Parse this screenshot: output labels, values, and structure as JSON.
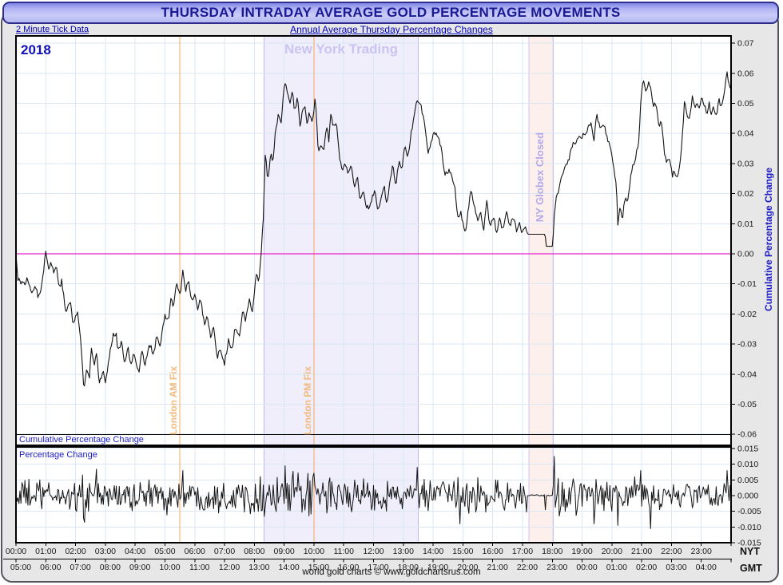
{
  "header": {
    "title": "THURSDAY INTRADAY AVERAGE GOLD PERCENTAGE MOVEMENTS",
    "left_subtitle": "2 Minute Tick Data",
    "center_subtitle": "Annual Average Thursday Percentage Changes"
  },
  "labels": {
    "year": "2018",
    "main_panel": "Cumulative Percentage Change",
    "sub_panel": "Percentage Change",
    "right_axis_title": "Cumulative Percentage Change",
    "nyt": "NYT",
    "gmt": "GMT"
  },
  "footer": {
    "credit": "world gold charts © www.goldchartsrus.com"
  },
  "axis": {
    "nyt_times": [
      "00:00",
      "01:00",
      "02:00",
      "03:00",
      "04:00",
      "05:00",
      "06:00",
      "07:00",
      "08:00",
      "09:00",
      "10:00",
      "11:00",
      "12:00",
      "13:00",
      "14:00",
      "15:00",
      "16:00",
      "17:00",
      "18:00",
      "19:00",
      "20:00",
      "21:00",
      "22:00",
      "23:00"
    ],
    "gmt_times": [
      "05:00",
      "06:00",
      "07:00",
      "08:00",
      "09:00",
      "10:00",
      "11:00",
      "12:00",
      "13:00",
      "14:00",
      "15:00",
      "16:00",
      "17:00",
      "18:00",
      "19:00",
      "20:00",
      "21:00",
      "22:00",
      "23:00",
      "00:00",
      "01:00",
      "02:00",
      "03:00",
      "04:00"
    ]
  },
  "annotations": {
    "ny_trading": {
      "label": "New York Trading",
      "t_start": 8.33,
      "t_end": 13.5
    },
    "globex": {
      "label": "NY Globex Closed",
      "t_start": 17.22,
      "t_end": 18.03
    },
    "am_fix": {
      "label": "London AM Fix",
      "t": 5.5
    },
    "pm_fix": {
      "label": "London PM Fix",
      "t": 10.0
    }
  },
  "colors": {
    "title_navy": "#191994",
    "subtitle_blue": "#0000bb",
    "grid": "#d9e8f4",
    "series": "#141414",
    "zero_line": "#ea1fd0",
    "fix_line": "#f0a862",
    "fix_label": "#f4b97e",
    "ny_band_fill": "#f0eefb",
    "ny_band_border": "#bdb5ec",
    "ny_band_label": "#c9c4f3",
    "globex_fill": "#fdf0ec",
    "globex_border": "#ccc5f1",
    "globex_label": "#b2a9ea",
    "axis_text": "#1a1a1a",
    "blue_label": "#1c1ccc",
    "plot_bg": "#ffffff"
  },
  "chart_data": {
    "type": "line",
    "title": "Thursday intraday average gold percentage movements (2018, 2-minute ticks)",
    "x_unit": "hours NYT",
    "x_range": [
      0,
      24
    ],
    "tick_minutes": 2,
    "events": {
      "london_am_fix_t": 5.5,
      "london_pm_fix_t": 10.0,
      "ny_trading": [
        8.33,
        13.5
      ],
      "globex_closed": [
        17.22,
        18.03
      ]
    },
    "panels": [
      {
        "name": "Cumulative Percentage Change",
        "y_range": [
          -0.06,
          0.07
        ],
        "y_step": 0.01,
        "noise_amp": 0.0009,
        "flat_ranges": [
          [
            17.16,
            17.77
          ],
          [
            17.79,
            18.03
          ]
        ],
        "waypoints": [
          [
            0,
            0
          ],
          [
            0.06,
            -0.008
          ],
          [
            0.24,
            -0.0103
          ],
          [
            0.38,
            -0.0085
          ],
          [
            0.51,
            -0.0125
          ],
          [
            0.64,
            -0.0106
          ],
          [
            0.73,
            -0.0138
          ],
          [
            0.82,
            -0.0125
          ],
          [
            0.91,
            -0.0064
          ],
          [
            1,
            0.0008
          ],
          [
            1.09,
            -0.005
          ],
          [
            1.18,
            -0.0027
          ],
          [
            1.27,
            -0.0064
          ],
          [
            1.36,
            -0.004
          ],
          [
            1.45,
            -0.0111
          ],
          [
            1.54,
            -0.009
          ],
          [
            1.67,
            -0.0199
          ],
          [
            1.76,
            -0.0164
          ],
          [
            1.85,
            -0.017
          ],
          [
            1.91,
            -0.0236
          ],
          [
            2.07,
            -0.0191
          ],
          [
            2.18,
            -0.0297
          ],
          [
            2.28,
            -0.0456
          ],
          [
            2.37,
            -0.0381
          ],
          [
            2.47,
            -0.0416
          ],
          [
            2.52,
            -0.0306
          ],
          [
            2.63,
            -0.0363
          ],
          [
            2.71,
            -0.0323
          ],
          [
            2.79,
            -0.0429
          ],
          [
            2.92,
            -0.039
          ],
          [
            3,
            -0.043
          ],
          [
            3.14,
            -0.0341
          ],
          [
            3.25,
            -0.027
          ],
          [
            3.37,
            -0.0262
          ],
          [
            3.42,
            -0.0324
          ],
          [
            3.55,
            -0.0289
          ],
          [
            3.64,
            -0.0358
          ],
          [
            3.77,
            -0.0315
          ],
          [
            3.86,
            -0.0377
          ],
          [
            3.95,
            -0.0332
          ],
          [
            4.13,
            -0.039
          ],
          [
            4.22,
            -0.0324
          ],
          [
            4.34,
            -0.0368
          ],
          [
            4.48,
            -0.0297
          ],
          [
            4.62,
            -0.0337
          ],
          [
            4.71,
            -0.0279
          ],
          [
            4.85,
            -0.0306
          ],
          [
            4.99,
            -0.02
          ],
          [
            5.12,
            -0.0226
          ],
          [
            5.2,
            -0.0146
          ],
          [
            5.29,
            -0.0182
          ],
          [
            5.39,
            -0.0098
          ],
          [
            5.52,
            -0.0138
          ],
          [
            5.6,
            -0.0058
          ],
          [
            5.69,
            -0.0125
          ],
          [
            5.78,
            -0.0085
          ],
          [
            5.92,
            -0.0164
          ],
          [
            6.01,
            -0.013
          ],
          [
            6.09,
            -0.019
          ],
          [
            6.19,
            -0.0146
          ],
          [
            6.32,
            -0.0236
          ],
          [
            6.41,
            -0.02
          ],
          [
            6.54,
            -0.0279
          ],
          [
            6.63,
            -0.0244
          ],
          [
            6.77,
            -0.035
          ],
          [
            6.85,
            -0.0306
          ],
          [
            6.99,
            -0.0368
          ],
          [
            7.13,
            -0.0289
          ],
          [
            7.26,
            -0.0324
          ],
          [
            7.35,
            -0.0244
          ],
          [
            7.48,
            -0.0279
          ],
          [
            7.62,
            -0.019
          ],
          [
            7.7,
            -0.0226
          ],
          [
            7.83,
            -0.0156
          ],
          [
            7.93,
            -0.019
          ],
          [
            8.07,
            -0.0058
          ],
          [
            8.15,
            -0.0103
          ],
          [
            8.24,
            0.002
          ],
          [
            8.3,
            0.012
          ],
          [
            8.37,
            0.034
          ],
          [
            8.45,
            0.024
          ],
          [
            8.55,
            0.034
          ],
          [
            8.62,
            0.03
          ],
          [
            8.7,
            0.04
          ],
          [
            8.8,
            0.046
          ],
          [
            8.9,
            0.043
          ],
          [
            9.02,
            0.058
          ],
          [
            9.1,
            0.053
          ],
          [
            9.2,
            0.05
          ],
          [
            9.28,
            0.055
          ],
          [
            9.35,
            0.047
          ],
          [
            9.45,
            0.052
          ],
          [
            9.53,
            0.043
          ],
          [
            9.62,
            0.047
          ],
          [
            9.7,
            0.049
          ],
          [
            9.78,
            0.043
          ],
          [
            9.85,
            0.047
          ],
          [
            9.95,
            0.044
          ],
          [
            10.05,
            0.052
          ],
          [
            10.15,
            0.033
          ],
          [
            10.25,
            0.037
          ],
          [
            10.32,
            0.033
          ],
          [
            10.42,
            0.043
          ],
          [
            10.5,
            0.038
          ],
          [
            10.58,
            0.047
          ],
          [
            10.65,
            0.042
          ],
          [
            10.75,
            0.044
          ],
          [
            10.85,
            0.033
          ],
          [
            10.95,
            0.027
          ],
          [
            11.05,
            0.03
          ],
          [
            11.15,
            0.026
          ],
          [
            11.25,
            0.029
          ],
          [
            11.35,
            0.022
          ],
          [
            11.45,
            0.026
          ],
          [
            11.55,
            0.017
          ],
          [
            11.65,
            0.021
          ],
          [
            11.75,
            0.015
          ],
          [
            11.85,
            0.0155
          ],
          [
            11.95,
            0.018
          ],
          [
            12.05,
            0.022
          ],
          [
            12.15,
            0.014
          ],
          [
            12.25,
            0.019
          ],
          [
            12.35,
            0.023
          ],
          [
            12.45,
            0.016
          ],
          [
            12.55,
            0.025
          ],
          [
            12.65,
            0.029
          ],
          [
            12.75,
            0.022
          ],
          [
            12.85,
            0.031
          ],
          [
            12.95,
            0.028
          ],
          [
            13.05,
            0.036
          ],
          [
            13.15,
            0.032
          ],
          [
            13.25,
            0.039
          ],
          [
            13.35,
            0.045
          ],
          [
            13.45,
            0.052
          ],
          [
            13.6,
            0.049
          ],
          [
            13.7,
            0.044
          ],
          [
            13.83,
            0.0334
          ],
          [
            14.05,
            0.0406
          ],
          [
            14.27,
            0.0358
          ],
          [
            14.38,
            0.026
          ],
          [
            14.54,
            0.0281
          ],
          [
            14.72,
            0.0233
          ],
          [
            14.83,
            0.0122
          ],
          [
            14.94,
            0.0135
          ],
          [
            15.08,
            0.0066
          ],
          [
            15.27,
            0.0212
          ],
          [
            15.38,
            0.0154
          ],
          [
            15.51,
            0.0109
          ],
          [
            15.59,
            0.0146
          ],
          [
            15.69,
            0.0066
          ],
          [
            15.8,
            0.0172
          ],
          [
            15.91,
            0.0093
          ],
          [
            16.04,
            0.0122
          ],
          [
            16.12,
            0.0066
          ],
          [
            16.23,
            0.0114
          ],
          [
            16.34,
            0.008
          ],
          [
            16.47,
            0.0135
          ],
          [
            16.58,
            0.0093
          ],
          [
            16.66,
            0.0127
          ],
          [
            16.8,
            0.008
          ],
          [
            16.88,
            0.0106
          ],
          [
            16.96,
            0.0069
          ],
          [
            17.07,
            0.0093
          ],
          [
            17.18,
            0.0065
          ],
          [
            17.76,
            0.0065
          ],
          [
            17.79,
            0.0025
          ],
          [
            18.02,
            0.0025
          ],
          [
            18.07,
            0.0145
          ],
          [
            18.15,
            0.019
          ],
          [
            18.27,
            0.024
          ],
          [
            18.4,
            0.029
          ],
          [
            18.55,
            0.031
          ],
          [
            18.62,
            0.0348
          ],
          [
            18.75,
            0.0371
          ],
          [
            18.89,
            0.0385
          ],
          [
            19.02,
            0.0393
          ],
          [
            19.16,
            0.0406
          ],
          [
            19.29,
            0.0432
          ],
          [
            19.4,
            0.0379
          ],
          [
            19.48,
            0.0459
          ],
          [
            19.56,
            0.044
          ],
          [
            19.64,
            0.0414
          ],
          [
            19.75,
            0.0427
          ],
          [
            19.88,
            0.0374
          ],
          [
            19.96,
            0.034
          ],
          [
            20.04,
            0.03
          ],
          [
            20.15,
            0.0225
          ],
          [
            20.2,
            0.0101
          ],
          [
            20.28,
            0.0154
          ],
          [
            20.36,
            0.0119
          ],
          [
            20.45,
            0.0199
          ],
          [
            20.52,
            0.0172
          ],
          [
            20.63,
            0.0252
          ],
          [
            20.71,
            0.0292
          ],
          [
            20.82,
            0.0332
          ],
          [
            20.9,
            0.0366
          ],
          [
            20.98,
            0.0525
          ],
          [
            21.06,
            0.0586
          ],
          [
            21.12,
            0.0533
          ],
          [
            21.22,
            0.0565
          ],
          [
            21.3,
            0.0552
          ],
          [
            21.39,
            0.0491
          ],
          [
            21.47,
            0.0504
          ],
          [
            21.57,
            0.0427
          ],
          [
            21.65,
            0.044
          ],
          [
            21.76,
            0.034
          ],
          [
            21.84,
            0.03
          ],
          [
            21.92,
            0.0321
          ],
          [
            22.03,
            0.026
          ],
          [
            22.08,
            0.0281
          ],
          [
            22.19,
            0.0247
          ],
          [
            22.3,
            0.0308
          ],
          [
            22.38,
            0.0414
          ],
          [
            22.44,
            0.0507
          ],
          [
            22.52,
            0.0467
          ],
          [
            22.6,
            0.0446
          ],
          [
            22.71,
            0.0525
          ],
          [
            22.79,
            0.0485
          ],
          [
            22.87,
            0.0507
          ],
          [
            22.95,
            0.0477
          ],
          [
            23,
            0.0525
          ],
          [
            23.11,
            0.0491
          ],
          [
            23.19,
            0.0467
          ],
          [
            23.27,
            0.0499
          ],
          [
            23.35,
            0.0459
          ],
          [
            23.4,
            0.048
          ],
          [
            23.51,
            0.0464
          ],
          [
            23.59,
            0.0512
          ],
          [
            23.67,
            0.0493
          ],
          [
            23.78,
            0.0533
          ],
          [
            23.86,
            0.0605
          ],
          [
            23.94,
            0.0557
          ],
          [
            24,
            0.056
          ]
        ]
      },
      {
        "name": "Percentage Change",
        "y_range": [
          -0.015,
          0.015
        ],
        "y_step": 0.005,
        "noise_amp": 0.005,
        "quiet_ranges": [
          [
            17.16,
            18.02
          ]
        ],
        "boost_ranges": [
          [
            2.0,
            3.2
          ],
          [
            8.2,
            10.6
          ],
          [
            18.05,
            19.6
          ]
        ],
        "spikes": [
          [
            2.3,
            -0.0085
          ],
          [
            5.6,
            0.008
          ],
          [
            9.02,
            0.0095
          ],
          [
            13.45,
            0.009
          ],
          [
            14.9,
            -0.009
          ],
          [
            17.78,
            -0.0045
          ],
          [
            18.07,
            0.0125
          ],
          [
            19.4,
            -0.009
          ],
          [
            20.2,
            -0.0095
          ],
          [
            20.98,
            0.008
          ],
          [
            21.3,
            -0.0105
          ],
          [
            23.86,
            0.008
          ]
        ]
      }
    ]
  }
}
